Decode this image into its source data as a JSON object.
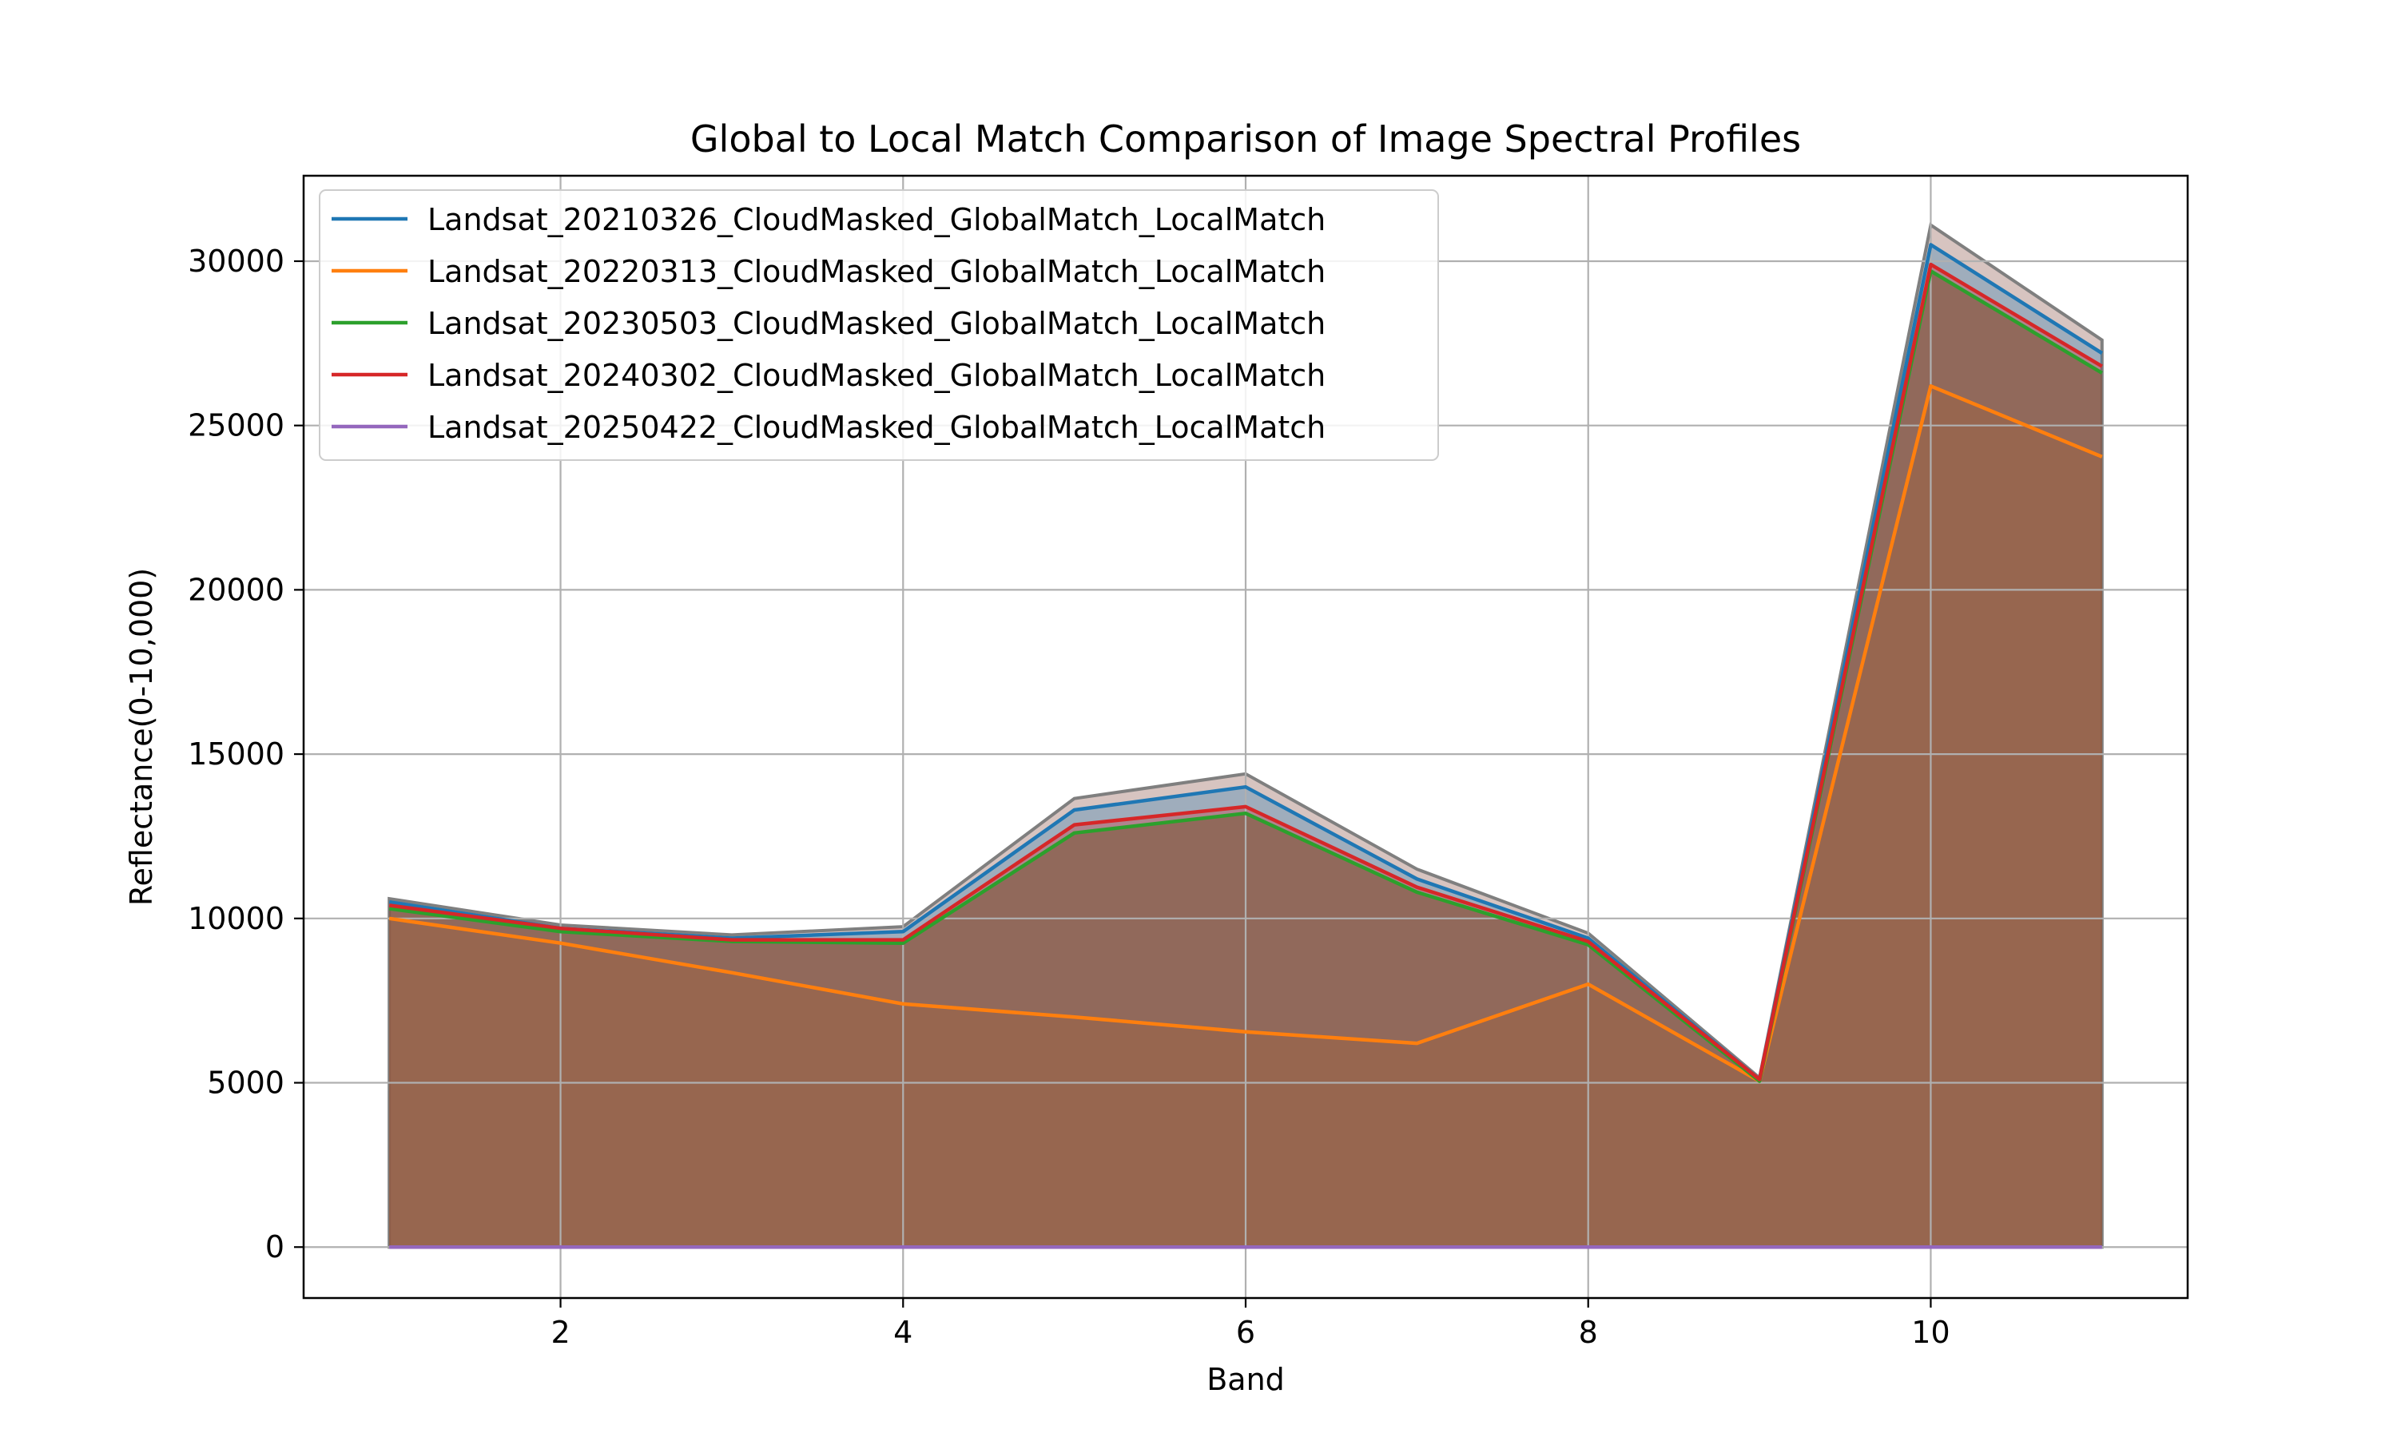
{
  "chart_data": {
    "type": "area",
    "title": "Global to Local Match Comparison of Image Spectral Profiles",
    "xlabel": "Band",
    "ylabel": "Reflectance(0-10,000)",
    "xlim": [
      0.5,
      11.5
    ],
    "ylim": [
      -1550,
      32600
    ],
    "xticks": [
      2,
      4,
      6,
      8,
      10
    ],
    "yticks": [
      0,
      5000,
      10000,
      15000,
      20000,
      25000,
      30000
    ],
    "grid": true,
    "legend_position": "upper-left",
    "x": [
      1,
      2,
      3,
      4,
      5,
      6,
      7,
      8,
      9,
      10,
      11
    ],
    "series": [
      {
        "name": "Landsat_20210326_CloudMasked_GlobalMatch_LocalMatch",
        "color": "#1f77b4",
        "values": [
          10500,
          9700,
          9400,
          9600,
          13300,
          14000,
          11200,
          9400,
          5100,
          30500,
          27200
        ]
      },
      {
        "name": "Landsat_20220313_CloudMasked_GlobalMatch_LocalMatch",
        "color": "#ff7f0e",
        "values": [
          10000,
          9250,
          8350,
          7400,
          7000,
          6550,
          6200,
          8000,
          5050,
          26200,
          24050
        ]
      },
      {
        "name": "Landsat_20230503_CloudMasked_GlobalMatch_LocalMatch",
        "color": "#2ca02c",
        "values": [
          10300,
          9600,
          9300,
          9250,
          12600,
          13200,
          10800,
          9200,
          5050,
          29700,
          26600
        ]
      },
      {
        "name": "Landsat_20240302_CloudMasked_GlobalMatch_LocalMatch",
        "color": "#d62728",
        "values": [
          10400,
          9700,
          9350,
          9350,
          12850,
          13400,
          10950,
          9300,
          5100,
          29900,
          26800
        ]
      },
      {
        "name": "Landsat_20250422_CloudMasked_GlobalMatch_LocalMatch",
        "color": "#9467bd",
        "values": [
          0,
          0,
          0,
          0,
          0,
          0,
          0,
          0,
          0,
          0,
          0
        ]
      }
    ],
    "envelope": {
      "color": "#8c564b",
      "values": [
        10600,
        9800,
        9500,
        9750,
        13650,
        14400,
        11500,
        9550,
        5150,
        31100,
        27600
      ]
    }
  }
}
